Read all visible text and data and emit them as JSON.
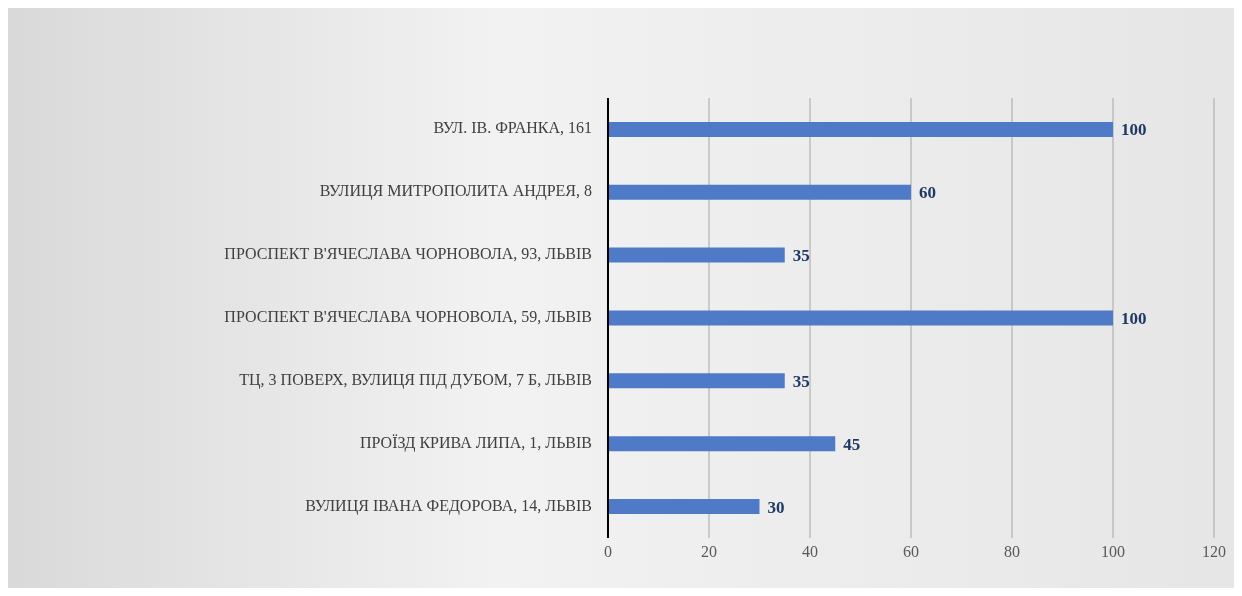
{
  "chart_data": {
    "type": "bar",
    "orientation": "horizontal",
    "categories": [
      "ВУЛ. ІВ. ФРАНКА, 161",
      "ВУЛИЦЯ МИТРОПОЛИТА АНДРЕЯ, 8",
      "ПРОСПЕКТ В'ЯЧЕСЛАВА ЧОРНОВОЛА, 93, ЛЬВІВ",
      "ПРОСПЕКТ В'ЯЧЕСЛАВА ЧОРНОВОЛА, 59, ЛЬВІВ",
      "ТЦ, 3 ПОВЕРХ, ВУЛИЦЯ ПІД ДУБОМ, 7 Б, ЛЬВІВ",
      "ПРОЇЗД КРИВА ЛИПА, 1, ЛЬВІВ",
      "ВУЛИЦЯ ІВАНА ФЕДОРОВА, 14, ЛЬВІВ"
    ],
    "values": [
      100,
      60,
      35,
      100,
      35,
      45,
      30
    ],
    "color": "#4f7ac7",
    "xlim": [
      0,
      120
    ],
    "xticks": [
      0,
      20,
      40,
      60,
      80,
      100,
      120
    ],
    "grid": "x",
    "data_labels": true
  }
}
